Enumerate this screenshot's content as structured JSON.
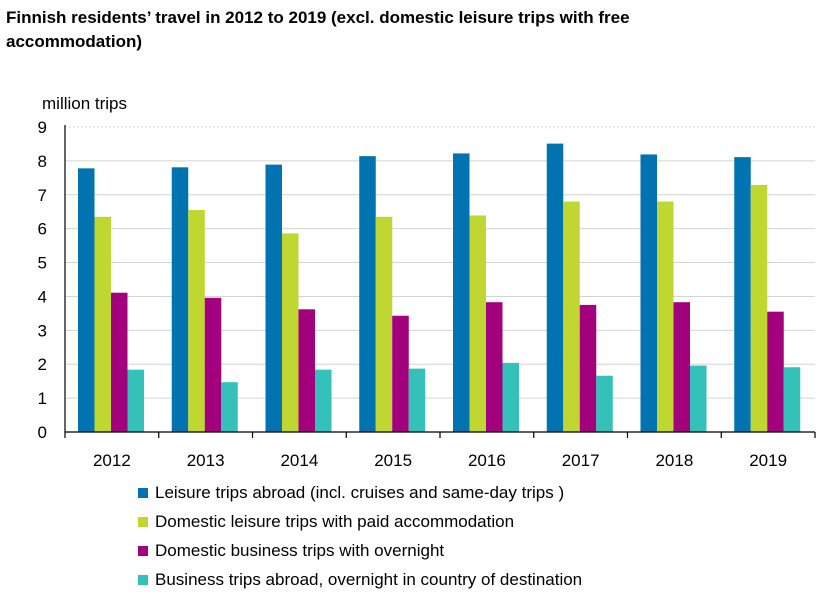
{
  "chart_data": {
    "type": "bar",
    "title": "Finnish residents’ travel in 2012 to 2019 (excl. domestic leisure trips with free accommodation)",
    "ylabel": "million trips",
    "xlabel": "",
    "ylim": [
      0,
      9
    ],
    "yticks": [
      "0",
      "1",
      "2",
      "3",
      "4",
      "5",
      "6",
      "7",
      "8",
      "9"
    ],
    "grid": true,
    "legend_position": "bottom",
    "categories": [
      "2012",
      "2013",
      "2014",
      "2015",
      "2016",
      "2017",
      "2018",
      "2019"
    ],
    "series": [
      {
        "name": "Leisure trips abroad (incl. cruises and same-day trips )",
        "color": "#0073B0",
        "values": [
          7.78,
          7.81,
          7.89,
          8.14,
          8.22,
          8.51,
          8.19,
          8.11
        ]
      },
      {
        "name": "Domestic leisure trips with paid accommodation",
        "color": "#BFD730",
        "values": [
          6.35,
          6.55,
          5.86,
          6.35,
          6.39,
          6.8,
          6.8,
          7.29
        ]
      },
      {
        "name": "Domestic business trips with overnight",
        "color": "#A3007D",
        "values": [
          4.11,
          3.96,
          3.62,
          3.43,
          3.83,
          3.75,
          3.83,
          3.55
        ]
      },
      {
        "name": "Business trips abroad, overnight in country of destination",
        "color": "#33C1BA",
        "values": [
          1.84,
          1.47,
          1.84,
          1.87,
          2.04,
          1.66,
          1.96,
          1.91
        ]
      }
    ]
  }
}
